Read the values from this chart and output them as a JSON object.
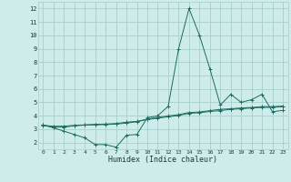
{
  "xlabel": "Humidex (Indice chaleur)",
  "bg_color": "#ceecea",
  "grid_color": "#aacfcb",
  "line_color": "#1e6b60",
  "x_data": [
    0,
    1,
    2,
    3,
    4,
    5,
    6,
    7,
    8,
    9,
    10,
    11,
    12,
    13,
    14,
    15,
    16,
    17,
    18,
    19,
    20,
    21,
    22,
    23
  ],
  "series1": [
    3.3,
    3.1,
    2.85,
    2.6,
    2.35,
    1.85,
    1.85,
    1.65,
    2.55,
    2.6,
    3.85,
    4.0,
    4.7,
    9.0,
    12.0,
    10.0,
    7.5,
    4.8,
    5.6,
    5.0,
    5.2,
    5.6,
    4.3,
    4.4
  ],
  "series2": [
    3.3,
    3.15,
    3.15,
    3.25,
    3.3,
    3.32,
    3.34,
    3.38,
    3.45,
    3.55,
    3.72,
    3.82,
    3.92,
    4.02,
    4.18,
    4.22,
    4.32,
    4.38,
    4.48,
    4.52,
    4.58,
    4.62,
    4.62,
    4.68
  ],
  "series3": [
    3.28,
    3.22,
    3.22,
    3.28,
    3.32,
    3.36,
    3.38,
    3.42,
    3.52,
    3.58,
    3.74,
    3.88,
    3.98,
    4.08,
    4.24,
    4.28,
    4.38,
    4.48,
    4.52,
    4.58,
    4.62,
    4.68,
    4.68,
    4.72
  ],
  "xlim": [
    -0.5,
    23.5
  ],
  "ylim": [
    1.5,
    12.5
  ],
  "yticks": [
    2,
    3,
    4,
    5,
    6,
    7,
    8,
    9,
    10,
    11,
    12
  ],
  "xticks": [
    0,
    1,
    2,
    3,
    4,
    5,
    6,
    7,
    8,
    9,
    10,
    11,
    12,
    13,
    14,
    15,
    16,
    17,
    18,
    19,
    20,
    21,
    22,
    23
  ],
  "xlabel_fontsize": 6.0,
  "tick_fontsize_x": 4.5,
  "tick_fontsize_y": 5.0
}
